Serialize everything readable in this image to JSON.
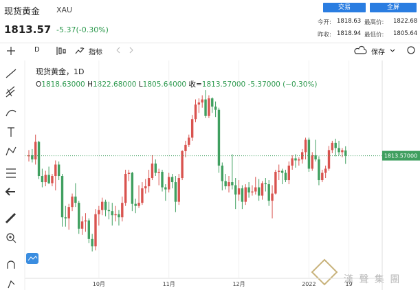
{
  "header": {
    "title": "现货黄金",
    "symbol": "XAU",
    "price": "1813.57",
    "change": "-5.37(-0.30%)",
    "buttons": [
      "交易",
      "全屏"
    ],
    "stats": [
      {
        "label": "今开:",
        "value": "1818.63"
      },
      {
        "label": "最高价:",
        "value": "1822.68"
      },
      {
        "label": "昨收:",
        "value": "1818.94"
      },
      {
        "label": "最低价:",
        "value": "1805.64"
      }
    ]
  },
  "toolbar": {
    "interval": "D",
    "indicators": "指标",
    "save": "保存"
  },
  "legend": {
    "title": "现货黄金，1D",
    "ohlc": [
      {
        "label": "O",
        "value": "1818.63000"
      },
      {
        "label": "H",
        "value": "1822.68000"
      },
      {
        "label": "L",
        "value": "1805.64000"
      },
      {
        "label": "收=",
        "value": "1813.57000"
      }
    ],
    "change": "-5.37000 (−0.30%)"
  },
  "watermark": "漢 聲 集 團",
  "chart_data": {
    "type": "candlestick",
    "categories": [
      null,
      null,
      null,
      null,
      null,
      null,
      null,
      null,
      null,
      null,
      null,
      null,
      null,
      null,
      null,
      null,
      null,
      null,
      null,
      null,
      null,
      "10月",
      null,
      null,
      null,
      null,
      null,
      null,
      null,
      null,
      null,
      null,
      null,
      null,
      null,
      null,
      null,
      null,
      null,
      null,
      null,
      null,
      "11月",
      null,
      null,
      null,
      null,
      null,
      null,
      null,
      null,
      null,
      null,
      null,
      null,
      null,
      null,
      null,
      null,
      null,
      null,
      null,
      null,
      "12月",
      null,
      null,
      null,
      null,
      null,
      null,
      null,
      null,
      null,
      null,
      null,
      null,
      null,
      null,
      null,
      null,
      null,
      null,
      null,
      null,
      "2022",
      null,
      null,
      null,
      null,
      null,
      null,
      null,
      null,
      null,
      null,
      null,
      "19"
    ],
    "ohlc": [
      [
        1813,
        1819,
        1808,
        1814
      ],
      [
        1814,
        1820,
        1807,
        1810
      ],
      [
        1810,
        1834,
        1805,
        1827
      ],
      [
        1827,
        1828,
        1791,
        1794
      ],
      [
        1794,
        1801,
        1783,
        1788
      ],
      [
        1788,
        1799,
        1784,
        1795
      ],
      [
        1795,
        1803,
        1786,
        1787
      ],
      [
        1787,
        1796,
        1784,
        1794
      ],
      [
        1794,
        1809,
        1780,
        1805
      ],
      [
        1805,
        1808,
        1790,
        1794
      ],
      [
        1794,
        1796,
        1745,
        1754
      ],
      [
        1754,
        1765,
        1745,
        1753
      ],
      [
        1753,
        1767,
        1742,
        1764
      ],
      [
        1764,
        1777,
        1760,
        1774
      ],
      [
        1774,
        1787,
        1764,
        1768
      ],
      [
        1768,
        1770,
        1738,
        1743
      ],
      [
        1743,
        1755,
        1737,
        1750
      ],
      [
        1750,
        1758,
        1740,
        1751
      ],
      [
        1751,
        1753,
        1729,
        1733
      ],
      [
        1733,
        1738,
        1721,
        1726
      ],
      [
        1726,
        1762,
        1722,
        1757
      ],
      [
        1757,
        1765,
        1746,
        1761
      ],
      [
        1761,
        1773,
        1756,
        1769
      ],
      [
        1769,
        1771,
        1755,
        1761
      ],
      [
        1761,
        1769,
        1752,
        1760
      ],
      [
        1760,
        1768,
        1746,
        1756
      ],
      [
        1756,
        1765,
        1750,
        1757
      ],
      [
        1757,
        1761,
        1746,
        1754
      ],
      [
        1754,
        1774,
        1750,
        1768
      ],
      [
        1768,
        1800,
        1765,
        1796
      ],
      [
        1796,
        1800,
        1789,
        1797
      ],
      [
        1797,
        1798,
        1760,
        1767
      ],
      [
        1767,
        1772,
        1758,
        1765
      ],
      [
        1765,
        1785,
        1763,
        1768
      ],
      [
        1768,
        1788,
        1766,
        1782
      ],
      [
        1782,
        1791,
        1777,
        1784
      ],
      [
        1784,
        1800,
        1778,
        1792
      ],
      [
        1792,
        1814,
        1790,
        1806
      ],
      [
        1806,
        1810,
        1794,
        1797
      ],
      [
        1797,
        1801,
        1785,
        1798
      ],
      [
        1798,
        1800,
        1779,
        1783
      ],
      [
        1783,
        1786,
        1770,
        1781
      ],
      [
        1781,
        1797,
        1778,
        1793
      ],
      [
        1793,
        1796,
        1782,
        1788
      ],
      [
        1788,
        1794,
        1759,
        1769
      ],
      [
        1769,
        1796,
        1766,
        1792
      ],
      [
        1792,
        1819,
        1790,
        1818
      ],
      [
        1818,
        1828,
        1812,
        1824
      ],
      [
        1824,
        1834,
        1822,
        1831
      ],
      [
        1831,
        1853,
        1828,
        1849
      ],
      [
        1849,
        1868,
        1846,
        1863
      ],
      [
        1863,
        1869,
        1855,
        1865
      ],
      [
        1865,
        1872,
        1860,
        1868
      ],
      [
        1868,
        1877,
        1850,
        1852
      ],
      [
        1852,
        1872,
        1850,
        1869
      ],
      [
        1869,
        1870,
        1855,
        1861
      ],
      [
        1861,
        1866,
        1851,
        1858
      ],
      [
        1858,
        1860,
        1797,
        1804
      ],
      [
        1804,
        1807,
        1780,
        1789
      ],
      [
        1789,
        1796,
        1781,
        1784
      ],
      [
        1784,
        1794,
        1778,
        1788
      ],
      [
        1788,
        1815,
        1781,
        1785
      ],
      [
        1785,
        1792,
        1762,
        1776
      ],
      [
        1776,
        1790,
        1770,
        1782
      ],
      [
        1782,
        1785,
        1762,
        1769
      ],
      [
        1769,
        1786,
        1766,
        1783
      ],
      [
        1783,
        1788,
        1773,
        1778
      ],
      [
        1778,
        1785,
        1775,
        1779
      ],
      [
        1779,
        1793,
        1776,
        1783
      ],
      [
        1783,
        1791,
        1770,
        1775
      ],
      [
        1775,
        1789,
        1771,
        1787
      ],
      [
        1787,
        1792,
        1779,
        1786
      ],
      [
        1786,
        1790,
        1765,
        1770
      ],
      [
        1770,
        1785,
        1753,
        1777
      ],
      [
        1777,
        1800,
        1776,
        1798
      ],
      [
        1798,
        1805,
        1790,
        1799
      ],
      [
        1799,
        1801,
        1786,
        1797
      ],
      [
        1797,
        1800,
        1788,
        1790
      ],
      [
        1790,
        1808,
        1786,
        1804
      ],
      [
        1804,
        1814,
        1800,
        1811
      ],
      [
        1811,
        1815,
        1802,
        1809
      ],
      [
        1809,
        1812,
        1804,
        1810
      ],
      [
        1810,
        1820,
        1806,
        1817
      ],
      [
        1817,
        1831,
        1810,
        1829
      ],
      [
        1829,
        1831,
        1798,
        1801
      ],
      [
        1801,
        1817,
        1799,
        1814
      ],
      [
        1814,
        1829,
        1808,
        1810
      ],
      [
        1810,
        1813,
        1785,
        1790
      ],
      [
        1790,
        1800,
        1788,
        1797
      ],
      [
        1797,
        1804,
        1792,
        1801
      ],
      [
        1801,
        1823,
        1799,
        1819
      ],
      [
        1819,
        1828,
        1816,
        1826
      ],
      [
        1826,
        1830,
        1813,
        1821
      ],
      [
        1821,
        1828,
        1814,
        1817
      ],
      [
        1817,
        1821,
        1812,
        1818.94
      ],
      [
        1818.63,
        1822.68,
        1805.64,
        1813.57
      ],
      null
    ],
    "up_color": "#d9534f",
    "down_color": "#3f9f5f",
    "last_price": {
      "value": 1813.57,
      "label": "1813.57000"
    },
    "last_price_color": "#3f9f5f",
    "ylim": [
      1695,
      1903
    ],
    "grid": true
  }
}
